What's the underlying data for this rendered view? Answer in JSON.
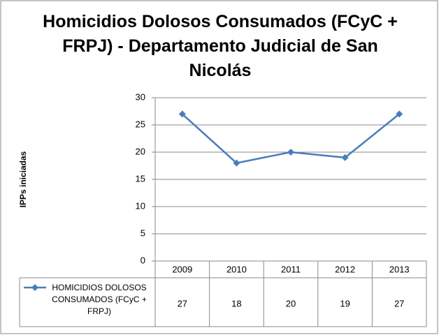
{
  "chart_data": {
    "type": "line",
    "title": "Homicidios Dolosos Consumados (FCyC + FRPJ) - Departamento Judicial de San Nicolás",
    "y_label": "IPPs iniciadas",
    "categories": [
      "2009",
      "2010",
      "2011",
      "2012",
      "2013"
    ],
    "series": [
      {
        "name": "HOMICIDIOS DOLOSOS CONSUMADOS (FCyC + FRPJ)",
        "color": "#4a7ebb",
        "values": [
          27,
          18,
          20,
          19,
          27
        ]
      }
    ],
    "ylim": [
      0,
      30
    ],
    "yticks": [
      0,
      5,
      10,
      15,
      20,
      25,
      30
    ],
    "grid": true
  }
}
